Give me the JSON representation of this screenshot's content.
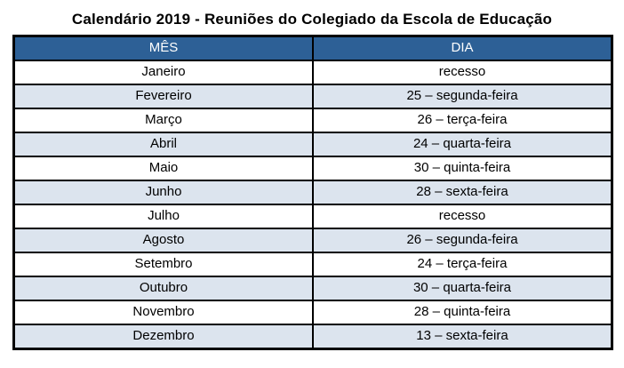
{
  "page": {
    "title": "Calendário 2019 - Reuniões do Colegiado da Escola de Educação"
  },
  "table": {
    "headers": [
      "MÊS",
      "DIA"
    ],
    "rows": [
      {
        "mes": "Janeiro",
        "dia": "recesso"
      },
      {
        "mes": "Fevereiro",
        "dia": "25 – segunda-feira"
      },
      {
        "mes": "Março",
        "dia": "26 – terça-feira"
      },
      {
        "mes": "Abril",
        "dia": "24 – quarta-feira"
      },
      {
        "mes": "Maio",
        "dia": "30 – quinta-feira"
      },
      {
        "mes": "Junho",
        "dia": "28 – sexta-feira"
      },
      {
        "mes": "Julho",
        "dia": "recesso"
      },
      {
        "mes": "Agosto",
        "dia": "26 – segunda-feira"
      },
      {
        "mes": "Setembro",
        "dia": "24 – terça-feira"
      },
      {
        "mes": "Outubro",
        "dia": "30 – quarta-feira"
      },
      {
        "mes": "Novembro",
        "dia": "28 – quinta-feira"
      },
      {
        "mes": "Dezembro",
        "dia": "13 – sexta-feira"
      }
    ],
    "colors": {
      "header_bg": "#2D6096",
      "header_text": "#FFFFFF",
      "alt_row_bg": "#DCE4EE",
      "border": "#000000"
    }
  }
}
